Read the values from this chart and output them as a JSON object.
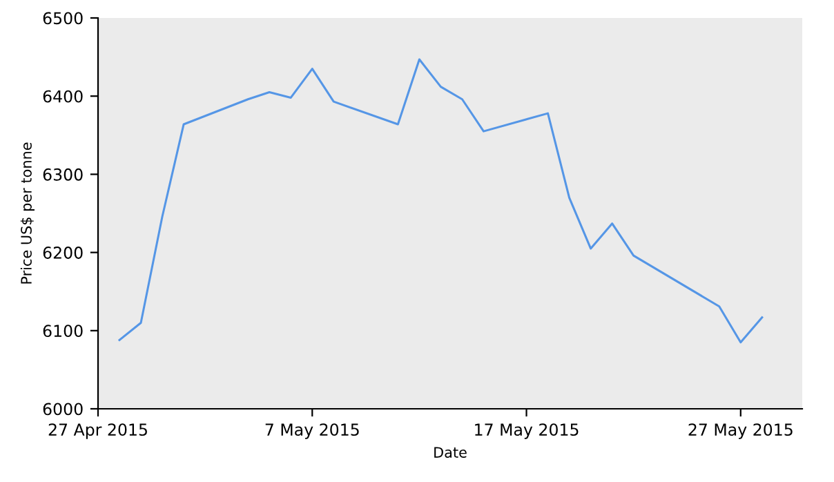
{
  "chart_data": {
    "type": "line",
    "xlabel": "Date",
    "ylabel": "Price US$ per tonne",
    "x": [
      "2015-04-28",
      "2015-04-29",
      "2015-04-30",
      "2015-05-01",
      "2015-05-04",
      "2015-05-05",
      "2015-05-06",
      "2015-05-07",
      "2015-05-08",
      "2015-05-11",
      "2015-05-12",
      "2015-05-13",
      "2015-05-14",
      "2015-05-15",
      "2015-05-18",
      "2015-05-19",
      "2015-05-20",
      "2015-05-21",
      "2015-05-22",
      "2015-05-26",
      "2015-05-27",
      "2015-05-28"
    ],
    "series": [
      {
        "color": "#5596e6",
        "values": [
          6088,
          6110,
          6246,
          6364,
          6396,
          6405,
          6398,
          6435,
          6393,
          6364,
          6447,
          6412,
          6396,
          6355,
          6378,
          6270,
          6205,
          6237,
          6196,
          6131,
          6085,
          6117
        ]
      }
    ],
    "xlim": [
      "2015-04-27",
      "2015-05-29T21:00"
    ],
    "xticks": [
      {
        "value": "2015-04-27",
        "label": "27 Apr 2015"
      },
      {
        "value": "2015-05-07",
        "label": "7 May 2015"
      },
      {
        "value": "2015-05-17",
        "label": "17 May 2015"
      },
      {
        "value": "2015-05-27",
        "label": "27 May 2015"
      }
    ],
    "ylim": [
      6000,
      6500
    ],
    "yticks": [
      6000,
      6100,
      6200,
      6300,
      6400,
      6500
    ],
    "grid": false,
    "legend": false,
    "marker": "none",
    "line_style": "solid"
  }
}
